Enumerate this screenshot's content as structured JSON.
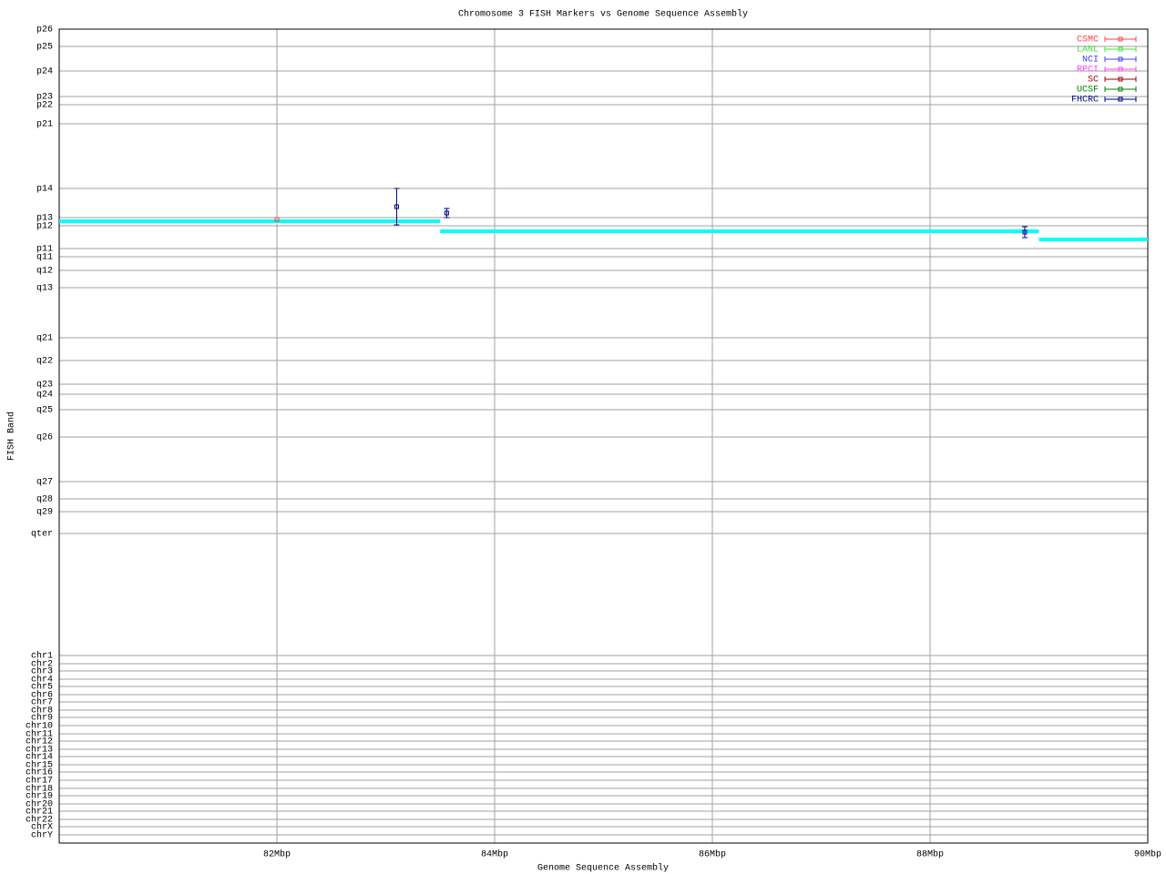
{
  "chart_data": {
    "type": "errorbar",
    "title": "Chromosome 3 FISH Markers vs Genome Sequence Assembly",
    "x_label": "Genome Sequence Assembly",
    "y_label": "FISH Band",
    "xlim": [
      80,
      90
    ],
    "xticks": [
      {
        "value": 82,
        "label": "82Mbp"
      },
      {
        "value": 84,
        "label": "84Mbp"
      },
      {
        "value": 86,
        "label": "86Mbp"
      },
      {
        "value": 88,
        "label": "88Mbp"
      },
      {
        "value": 90,
        "label": "90Mbp"
      }
    ],
    "ylim": [
      0,
      894
    ],
    "y_reversed": true,
    "yticks": [
      {
        "value": 0,
        "label": "p26"
      },
      {
        "value": 19,
        "label": "p25"
      },
      {
        "value": 46,
        "label": "p24"
      },
      {
        "value": 74,
        "label": "p23"
      },
      {
        "value": 83,
        "label": "p22"
      },
      {
        "value": 104,
        "label": "p21"
      },
      {
        "value": 175,
        "label": "p14"
      },
      {
        "value": 207,
        "label": "p13"
      },
      {
        "value": 216,
        "label": "p12"
      },
      {
        "value": 241,
        "label": "p11"
      },
      {
        "value": 250,
        "label": "q11"
      },
      {
        "value": 265,
        "label": "q12"
      },
      {
        "value": 284,
        "label": "q13"
      },
      {
        "value": 339,
        "label": "q21"
      },
      {
        "value": 364,
        "label": "q22"
      },
      {
        "value": 390,
        "label": "q23"
      },
      {
        "value": 401,
        "label": "q24"
      },
      {
        "value": 418,
        "label": "q25"
      },
      {
        "value": 448,
        "label": "q26"
      },
      {
        "value": 497,
        "label": "q27"
      },
      {
        "value": 516,
        "label": "q28"
      },
      {
        "value": 530,
        "label": "q29"
      },
      {
        "value": 554,
        "label": "qter"
      },
      {
        "value": 688,
        "label": "chr1"
      },
      {
        "value": 697,
        "label": "chr2"
      },
      {
        "value": 705,
        "label": "chr3"
      },
      {
        "value": 714,
        "label": "chr4"
      },
      {
        "value": 722,
        "label": "chr5"
      },
      {
        "value": 731,
        "label": "chr6"
      },
      {
        "value": 739,
        "label": "chr7"
      },
      {
        "value": 748,
        "label": "chr8"
      },
      {
        "value": 756,
        "label": "chr9"
      },
      {
        "value": 765,
        "label": "chr10"
      },
      {
        "value": 774,
        "label": "chr11"
      },
      {
        "value": 782,
        "label": "chr12"
      },
      {
        "value": 791,
        "label": "chr13"
      },
      {
        "value": 799,
        "label": "chr14"
      },
      {
        "value": 808,
        "label": "chr15"
      },
      {
        "value": 816,
        "label": "chr16"
      },
      {
        "value": 825,
        "label": "chr17"
      },
      {
        "value": 834,
        "label": "chr18"
      },
      {
        "value": 842,
        "label": "chr19"
      },
      {
        "value": 851,
        "label": "chr20"
      },
      {
        "value": 859,
        "label": "chr21"
      },
      {
        "value": 868,
        "label": "chr22"
      },
      {
        "value": 876,
        "label": "chrX"
      },
      {
        "value": 885,
        "label": "chrY"
      }
    ],
    "grid": true,
    "legend": "top-right",
    "assembly": {
      "color": "#00ffff",
      "x": [
        80,
        83.5,
        83.5,
        83.5,
        89.0,
        89.0,
        89.0,
        90
      ],
      "values": [
        211,
        211,
        null,
        222,
        222,
        null,
        231,
        231
      ]
    },
    "series": [
      {
        "name": "CSMC",
        "color": "#ff4040",
        "x": [
          82.0
        ],
        "values": [
          209
        ],
        "errors": [
          0
        ]
      },
      {
        "name": "LANL",
        "color": "#40e040",
        "x": [],
        "values": [],
        "errors": []
      },
      {
        "name": "NCI",
        "color": "#4040ff",
        "x": [],
        "values": [],
        "errors": []
      },
      {
        "name": "RPCI",
        "color": "#ff40ff",
        "x": [],
        "values": [],
        "errors": []
      },
      {
        "name": "SC",
        "color": "#a00000",
        "x": [],
        "values": [],
        "errors": []
      },
      {
        "name": "UCSF",
        "color": "#008000",
        "x": [],
        "values": [],
        "errors": []
      },
      {
        "name": "FHCRC",
        "color": "#000080",
        "x": [
          83.1,
          83.56,
          88.87
        ],
        "values": [
          195,
          202,
          223
        ],
        "errors": [
          20,
          5,
          6
        ]
      }
    ]
  }
}
